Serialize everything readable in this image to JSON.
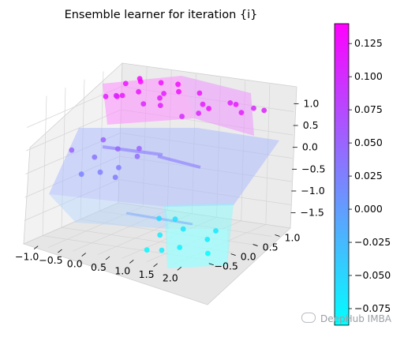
{
  "chart_data": {
    "type": "scatter",
    "title": "Ensemble learner for iteration {i}",
    "xlabel": "",
    "ylabel": "",
    "zlabel": "",
    "xlim": [
      -1.3,
      2.3
    ],
    "ylim": [
      -0.8,
      1.35
    ],
    "zlim": [
      -1.85,
      1.35
    ],
    "x_ticks": [
      "−1.0",
      "−0.5",
      "0.0",
      "0.5",
      "1.0",
      "1.5",
      "2.0"
    ],
    "y_ticks": [
      "−0.5",
      "0.0",
      "0.5",
      "1.0"
    ],
    "z_ticks": [
      "−1.5",
      "−1.0",
      "−0.5",
      "0.0",
      "0.5",
      "1.0"
    ],
    "colorbar": {
      "min": -0.0875,
      "max": 0.14,
      "ticks": [
        "0.125",
        "0.100",
        "0.075",
        "0.050",
        "0.025",
        "0.000",
        "−0.025",
        "−0.050",
        "−0.075"
      ],
      "colormap": "cool",
      "low_color": "#00ffff",
      "high_color": "#ff00ff"
    },
    "surface_steps": [
      {
        "region": "x < 0.5, y > 0.4",
        "z": 1.2
      },
      {
        "region": "x > 0.5, y > 0.4",
        "z": 1.05
      },
      {
        "region": "x < 0.5, y < 0.4",
        "z": -0.15
      },
      {
        "region": "x > 0.5, y < 0.4",
        "z": -1.7
      }
    ],
    "series": [
      {
        "type": "scatter3d",
        "colored_by": "z",
        "points": [
          [
            -0.9,
            1.0,
            1.1
          ],
          [
            -0.7,
            1.1,
            1.2
          ],
          [
            -0.5,
            0.9,
            1.25
          ],
          [
            -0.3,
            1.15,
            1.15
          ],
          [
            -0.1,
            1.0,
            1.0
          ],
          [
            -0.8,
            0.7,
            0.95
          ],
          [
            -0.6,
            0.6,
            1.05
          ],
          [
            -0.4,
            0.75,
            1.1
          ],
          [
            -0.2,
            0.65,
            0.9
          ],
          [
            0.0,
            0.8,
            1.0
          ],
          [
            0.1,
            1.1,
            1.2
          ],
          [
            0.3,
            0.9,
            1.15
          ],
          [
            0.2,
            0.6,
            0.95
          ],
          [
            -1.0,
            0.9,
            0.85
          ],
          [
            -0.9,
            0.55,
            1.0
          ],
          [
            0.6,
            1.05,
            1.1
          ],
          [
            0.9,
            0.8,
            1.0
          ],
          [
            1.2,
            1.1,
            0.95
          ],
          [
            1.5,
            0.9,
            1.05
          ],
          [
            1.8,
            0.7,
            1.0
          ],
          [
            1.0,
            0.6,
            0.9
          ],
          [
            1.3,
            0.5,
            1.1
          ],
          [
            1.6,
            1.2,
            0.85
          ],
          [
            2.0,
            1.0,
            0.95
          ],
          [
            0.7,
            0.55,
            0.8
          ],
          [
            -0.9,
            -0.2,
            0.1
          ],
          [
            -0.6,
            0.0,
            -0.1
          ],
          [
            -0.3,
            0.2,
            0.05
          ],
          [
            0.0,
            -0.1,
            -0.2
          ],
          [
            0.2,
            0.1,
            0.0
          ],
          [
            -0.7,
            0.3,
            0.15
          ],
          [
            -0.2,
            -0.3,
            -0.25
          ],
          [
            0.1,
            0.25,
            0.1
          ],
          [
            -0.5,
            -0.4,
            -0.3
          ],
          [
            0.3,
            -0.5,
            -0.2
          ],
          [
            0.6,
            0.2,
            -1.4
          ],
          [
            0.9,
            -0.1,
            -1.6
          ],
          [
            1.2,
            0.1,
            -1.5
          ],
          [
            1.5,
            -0.3,
            -1.7
          ],
          [
            1.8,
            0.0,
            -1.6
          ],
          [
            1.0,
            -0.5,
            -1.75
          ],
          [
            1.4,
            -0.6,
            -1.65
          ],
          [
            1.7,
            0.3,
            -1.55
          ],
          [
            2.0,
            -0.2,
            -1.8
          ],
          [
            0.8,
            0.35,
            -1.45
          ]
        ]
      }
    ]
  },
  "watermark": {
    "text": "DeepHub IMBA"
  }
}
